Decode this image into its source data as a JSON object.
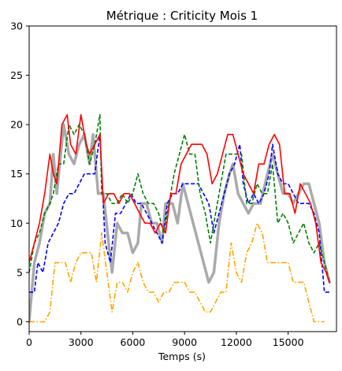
{
  "chart_data": {
    "type": "line",
    "title": "Métrique : Criticity Mois 1",
    "xlabel": "Temps (s)",
    "ylabel": "",
    "xlim": [
      0,
      17800
    ],
    "ylim": [
      -1,
      30
    ],
    "xticks": [
      0,
      3000,
      6000,
      9000,
      12000,
      15000
    ],
    "yticks": [
      0,
      5,
      10,
      15,
      20,
      25,
      30
    ],
    "grid": false,
    "series": [
      {
        "color": "#aaaaaa",
        "style": "solid",
        "width": 3.5,
        "points": [
          [
            0,
            0
          ],
          [
            300,
            6
          ],
          [
            600,
            8
          ],
          [
            900,
            11
          ],
          [
            1200,
            12
          ],
          [
            1400,
            17
          ],
          [
            1600,
            13
          ],
          [
            2000,
            20
          ],
          [
            2300,
            17
          ],
          [
            2600,
            16
          ],
          [
            2900,
            18
          ],
          [
            3200,
            19
          ],
          [
            3500,
            16
          ],
          [
            3700,
            19
          ],
          [
            4000,
            13
          ],
          [
            4300,
            13
          ],
          [
            4600,
            8
          ],
          [
            4800,
            5
          ],
          [
            5100,
            10
          ],
          [
            5400,
            9
          ],
          [
            5700,
            9
          ],
          [
            6000,
            7
          ],
          [
            6300,
            8
          ],
          [
            6500,
            12
          ],
          [
            6800,
            12
          ],
          [
            7100,
            10
          ],
          [
            7400,
            10
          ],
          [
            7700,
            8
          ],
          [
            7900,
            12
          ],
          [
            8300,
            12
          ],
          [
            8600,
            10
          ],
          [
            8900,
            14
          ],
          [
            9200,
            12
          ],
          [
            9500,
            10
          ],
          [
            9800,
            8
          ],
          [
            10100,
            6
          ],
          [
            10400,
            4
          ],
          [
            10700,
            5
          ],
          [
            11000,
            10
          ],
          [
            11300,
            13
          ],
          [
            11600,
            15
          ],
          [
            11800,
            16
          ],
          [
            12100,
            13
          ],
          [
            12400,
            12
          ],
          [
            12700,
            11
          ],
          [
            13000,
            12
          ],
          [
            13400,
            12
          ],
          [
            13800,
            15
          ],
          [
            14100,
            17
          ],
          [
            14400,
            15
          ],
          [
            14700,
            13
          ],
          [
            15000,
            13
          ],
          [
            15300,
            12
          ],
          [
            15600,
            13
          ],
          [
            15900,
            14
          ],
          [
            16200,
            14
          ],
          [
            16500,
            12
          ],
          [
            16800,
            10
          ],
          [
            17100,
            6
          ],
          [
            17400,
            4
          ]
        ]
      },
      {
        "color": "#0000ff",
        "style": "dashed",
        "width": 1.6,
        "points": [
          [
            0,
            3
          ],
          [
            300,
            3
          ],
          [
            500,
            6
          ],
          [
            800,
            5
          ],
          [
            1100,
            8
          ],
          [
            1400,
            9
          ],
          [
            1700,
            10
          ],
          [
            2000,
            12
          ],
          [
            2300,
            13
          ],
          [
            2600,
            13
          ],
          [
            2900,
            14
          ],
          [
            3200,
            15
          ],
          [
            3500,
            15
          ],
          [
            3800,
            15
          ],
          [
            4100,
            19
          ],
          [
            4400,
            8
          ],
          [
            4700,
            6
          ],
          [
            5000,
            11
          ],
          [
            5300,
            11
          ],
          [
            5600,
            12
          ],
          [
            5900,
            13
          ],
          [
            6200,
            12
          ],
          [
            6500,
            12
          ],
          [
            6800,
            11
          ],
          [
            7100,
            10
          ],
          [
            7400,
            9
          ],
          [
            7700,
            8
          ],
          [
            8000,
            12
          ],
          [
            8300,
            13
          ],
          [
            8600,
            13
          ],
          [
            8900,
            14
          ],
          [
            9200,
            14
          ],
          [
            9500,
            14
          ],
          [
            9800,
            14
          ],
          [
            10100,
            13
          ],
          [
            10400,
            12
          ],
          [
            10700,
            9
          ],
          [
            11000,
            11
          ],
          [
            11300,
            13
          ],
          [
            11600,
            15
          ],
          [
            11900,
            16
          ],
          [
            12200,
            18
          ],
          [
            12400,
            14
          ],
          [
            12700,
            12
          ],
          [
            13000,
            13
          ],
          [
            13300,
            12
          ],
          [
            13600,
            13
          ],
          [
            13900,
            15
          ],
          [
            14100,
            18
          ],
          [
            14400,
            15
          ],
          [
            14700,
            14
          ],
          [
            15000,
            14
          ],
          [
            15300,
            13
          ],
          [
            15600,
            12
          ],
          [
            15900,
            12
          ],
          [
            16200,
            12
          ],
          [
            16500,
            11
          ],
          [
            16800,
            9
          ],
          [
            17100,
            3
          ],
          [
            17400,
            3
          ]
        ]
      },
      {
        "color": "#008000",
        "style": "dashed",
        "width": 1.6,
        "points": [
          [
            0,
            5
          ],
          [
            300,
            8
          ],
          [
            600,
            9
          ],
          [
            900,
            11
          ],
          [
            1200,
            12
          ],
          [
            1400,
            13
          ],
          [
            1700,
            16
          ],
          [
            2000,
            16
          ],
          [
            2300,
            20
          ],
          [
            2600,
            19
          ],
          [
            2900,
            20
          ],
          [
            3200,
            19
          ],
          [
            3500,
            16
          ],
          [
            3800,
            18
          ],
          [
            4100,
            21
          ],
          [
            4200,
            13
          ],
          [
            4500,
            13
          ],
          [
            4800,
            12
          ],
          [
            5100,
            12
          ],
          [
            5400,
            13
          ],
          [
            5700,
            12
          ],
          [
            6000,
            13
          ],
          [
            6300,
            15
          ],
          [
            6600,
            13
          ],
          [
            6900,
            12
          ],
          [
            7200,
            12
          ],
          [
            7500,
            11
          ],
          [
            7800,
            9
          ],
          [
            8100,
            12
          ],
          [
            8400,
            15
          ],
          [
            8700,
            17
          ],
          [
            9000,
            19
          ],
          [
            9300,
            17
          ],
          [
            9600,
            17
          ],
          [
            9900,
            13
          ],
          [
            10200,
            11
          ],
          [
            10500,
            8
          ],
          [
            10800,
            11
          ],
          [
            11100,
            14
          ],
          [
            11400,
            17
          ],
          [
            11700,
            17
          ],
          [
            12000,
            17
          ],
          [
            12300,
            17
          ],
          [
            12600,
            12
          ],
          [
            12900,
            12
          ],
          [
            13200,
            14
          ],
          [
            13500,
            13
          ],
          [
            13800,
            13
          ],
          [
            14100,
            16
          ],
          [
            14400,
            10
          ],
          [
            14700,
            11
          ],
          [
            15000,
            10
          ],
          [
            15300,
            8
          ],
          [
            15600,
            9
          ],
          [
            15900,
            10
          ],
          [
            16200,
            8
          ],
          [
            16500,
            7
          ],
          [
            16800,
            8
          ],
          [
            17100,
            6
          ],
          [
            17400,
            4
          ]
        ]
      },
      {
        "color": "#ff0000",
        "style": "solid",
        "width": 1.6,
        "points": [
          [
            0,
            6
          ],
          [
            300,
            8
          ],
          [
            600,
            10
          ],
          [
            900,
            13
          ],
          [
            1200,
            17
          ],
          [
            1400,
            15
          ],
          [
            1600,
            14
          ],
          [
            1900,
            20
          ],
          [
            2200,
            21
          ],
          [
            2400,
            18
          ],
          [
            2700,
            17
          ],
          [
            3000,
            21
          ],
          [
            3300,
            18
          ],
          [
            3500,
            17
          ],
          [
            3800,
            18
          ],
          [
            4100,
            19
          ],
          [
            4300,
            12
          ],
          [
            4600,
            13
          ],
          [
            4900,
            13
          ],
          [
            5200,
            12
          ],
          [
            5500,
            13
          ],
          [
            5800,
            13
          ],
          [
            6100,
            12
          ],
          [
            6400,
            11
          ],
          [
            6700,
            10
          ],
          [
            7000,
            10
          ],
          [
            7300,
            9
          ],
          [
            7600,
            10
          ],
          [
            7900,
            9
          ],
          [
            8200,
            13
          ],
          [
            8500,
            13
          ],
          [
            8800,
            16
          ],
          [
            9100,
            17
          ],
          [
            9400,
            18
          ],
          [
            9700,
            18
          ],
          [
            10000,
            18
          ],
          [
            10300,
            17
          ],
          [
            10600,
            14
          ],
          [
            10900,
            15
          ],
          [
            11200,
            17
          ],
          [
            11500,
            19
          ],
          [
            11800,
            19
          ],
          [
            12100,
            17
          ],
          [
            12400,
            15
          ],
          [
            12700,
            14
          ],
          [
            13000,
            13
          ],
          [
            13300,
            16
          ],
          [
            13600,
            16
          ],
          [
            13900,
            18
          ],
          [
            14200,
            19
          ],
          [
            14500,
            18
          ],
          [
            14800,
            13
          ],
          [
            15100,
            13
          ],
          [
            15400,
            11
          ],
          [
            15700,
            14
          ],
          [
            16000,
            13
          ],
          [
            16300,
            12
          ],
          [
            16600,
            10
          ],
          [
            16900,
            6
          ],
          [
            17200,
            5
          ],
          [
            17400,
            4
          ]
        ]
      },
      {
        "color": "#ffa500",
        "style": "dashdot",
        "width": 1.6,
        "points": [
          [
            0,
            0
          ],
          [
            300,
            0
          ],
          [
            600,
            0
          ],
          [
            900,
            0
          ],
          [
            1200,
            1
          ],
          [
            1500,
            6
          ],
          [
            1800,
            6
          ],
          [
            2100,
            6
          ],
          [
            2400,
            4
          ],
          [
            2700,
            6
          ],
          [
            3000,
            7
          ],
          [
            3300,
            7
          ],
          [
            3600,
            7
          ],
          [
            3900,
            4
          ],
          [
            4200,
            9
          ],
          [
            4500,
            5
          ],
          [
            4800,
            1
          ],
          [
            5100,
            4
          ],
          [
            5400,
            4
          ],
          [
            5700,
            3
          ],
          [
            6000,
            5
          ],
          [
            6300,
            6
          ],
          [
            6600,
            4
          ],
          [
            6900,
            3
          ],
          [
            7200,
            3
          ],
          [
            7500,
            2
          ],
          [
            7800,
            3
          ],
          [
            8100,
            3
          ],
          [
            8400,
            4
          ],
          [
            8700,
            4
          ],
          [
            9000,
            4
          ],
          [
            9300,
            3
          ],
          [
            9600,
            3
          ],
          [
            9900,
            2
          ],
          [
            10200,
            1
          ],
          [
            10500,
            1
          ],
          [
            10800,
            2
          ],
          [
            11100,
            3
          ],
          [
            11400,
            3
          ],
          [
            11700,
            8
          ],
          [
            12000,
            5
          ],
          [
            12300,
            4
          ],
          [
            12600,
            7
          ],
          [
            12900,
            8
          ],
          [
            13200,
            10
          ],
          [
            13500,
            9
          ],
          [
            13800,
            6
          ],
          [
            14100,
            6
          ],
          [
            14400,
            6
          ],
          [
            14700,
            6
          ],
          [
            15000,
            6
          ],
          [
            15300,
            4
          ],
          [
            15600,
            4
          ],
          [
            15900,
            4
          ],
          [
            16200,
            2
          ],
          [
            16500,
            0
          ],
          [
            16800,
            0
          ],
          [
            17100,
            0
          ]
        ]
      }
    ]
  }
}
